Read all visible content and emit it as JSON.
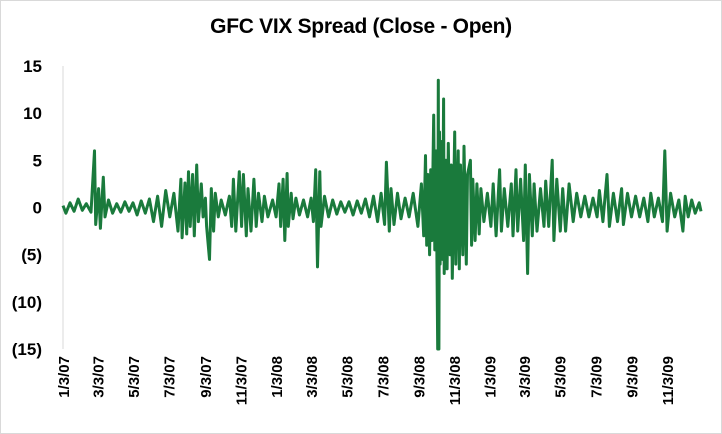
{
  "chart_data": {
    "type": "line",
    "title": "GFC VIX Spread (Close - Open)",
    "xlabel": "",
    "ylabel": "",
    "ylim": [
      -15,
      15
    ],
    "yticks": [
      15,
      10,
      5,
      0,
      -5,
      -10,
      -15
    ],
    "ytick_labels": [
      "15",
      "10",
      "5",
      "0",
      "(5)",
      "(10)",
      "(15)"
    ],
    "x_range": [
      "1/3/07",
      "12/31/09"
    ],
    "xtick_labels": [
      "1/3/07",
      "3/3/07",
      "5/3/07",
      "7/3/07",
      "9/3/07",
      "11/3/07",
      "1/3/08",
      "3/3/08",
      "5/3/08",
      "7/3/08",
      "9/3/08",
      "11/3/08",
      "1/3/09",
      "3/3/09",
      "5/3/09",
      "7/3/09",
      "9/3/09",
      "11/3/09"
    ],
    "grid": false,
    "legend": "none",
    "series": [
      {
        "color": "#1a7a3c",
        "points": [
          [
            "1/3/07",
            0.2
          ],
          [
            "1/8/07",
            -0.6
          ],
          [
            "1/15/07",
            0.5
          ],
          [
            "1/22/07",
            -0.4
          ],
          [
            "1/29/07",
            0.9
          ],
          [
            "2/5/07",
            -0.3
          ],
          [
            "2/12/07",
            0.4
          ],
          [
            "2/20/07",
            -0.5
          ],
          [
            "2/26/07",
            6.0
          ],
          [
            "2/28/07",
            -1.8
          ],
          [
            "3/5/07",
            2.0
          ],
          [
            "3/8/07",
            -2.2
          ],
          [
            "3/13/07",
            3.2
          ],
          [
            "3/16/07",
            -1.0
          ],
          [
            "3/22/07",
            0.8
          ],
          [
            "3/29/07",
            -0.6
          ],
          [
            "4/5/07",
            0.4
          ],
          [
            "4/12/07",
            -0.5
          ],
          [
            "4/19/07",
            0.6
          ],
          [
            "4/26/07",
            -0.4
          ],
          [
            "5/3/07",
            0.5
          ],
          [
            "5/10/07",
            -0.8
          ],
          [
            "5/17/07",
            0.7
          ],
          [
            "5/24/07",
            -0.6
          ],
          [
            "5/31/07",
            0.9
          ],
          [
            "6/7/07",
            -1.5
          ],
          [
            "6/14/07",
            1.2
          ],
          [
            "6/21/07",
            -2.0
          ],
          [
            "6/28/07",
            1.8
          ],
          [
            "7/5/07",
            -1.0
          ],
          [
            "7/12/07",
            1.5
          ],
          [
            "7/19/07",
            -2.5
          ],
          [
            "7/24/07",
            3.0
          ],
          [
            "7/26/07",
            -3.2
          ],
          [
            "7/31/07",
            2.6
          ],
          [
            "8/3/07",
            -2.8
          ],
          [
            "8/6/07",
            3.8
          ],
          [
            "8/9/07",
            -2.0
          ],
          [
            "8/13/07",
            3.5
          ],
          [
            "8/16/07",
            -3.0
          ],
          [
            "8/20/07",
            4.5
          ],
          [
            "8/23/07",
            -1.5
          ],
          [
            "8/28/07",
            2.5
          ],
          [
            "8/31/07",
            -1.0
          ],
          [
            "9/4/07",
            1.0
          ],
          [
            "9/6/07",
            -2.0
          ],
          [
            "9/11/07",
            -5.5
          ],
          [
            "9/14/07",
            2.0
          ],
          [
            "9/18/07",
            -2.5
          ],
          [
            "9/21/07",
            1.5
          ],
          [
            "9/26/07",
            -1.0
          ],
          [
            "10/1/07",
            0.8
          ],
          [
            "10/8/07",
            -0.8
          ],
          [
            "10/15/07",
            1.2
          ],
          [
            "10/19/07",
            -2.0
          ],
          [
            "10/22/07",
            3.0
          ],
          [
            "10/26/07",
            -2.5
          ],
          [
            "11/1/07",
            3.8
          ],
          [
            "11/5/07",
            -2.0
          ],
          [
            "11/8/07",
            3.5
          ],
          [
            "11/13/07",
            -3.0
          ],
          [
            "11/16/07",
            2.0
          ],
          [
            "11/21/07",
            -2.5
          ],
          [
            "11/26/07",
            3.0
          ],
          [
            "11/30/07",
            -2.0
          ],
          [
            "12/4/07",
            1.5
          ],
          [
            "12/10/07",
            -1.5
          ],
          [
            "12/14/07",
            1.2
          ],
          [
            "12/20/07",
            -1.0
          ],
          [
            "12/28/07",
            0.8
          ],
          [
            "1/3/08",
            -1.0
          ],
          [
            "1/8/08",
            2.5
          ],
          [
            "1/11/08",
            -2.0
          ],
          [
            "1/15/08",
            3.0
          ],
          [
            "1/18/08",
            -3.5
          ],
          [
            "1/22/08",
            3.6
          ],
          [
            "1/24/08",
            -2.0
          ],
          [
            "1/29/08",
            1.5
          ],
          [
            "2/1/08",
            -1.2
          ],
          [
            "2/6/08",
            1.0
          ],
          [
            "2/12/08",
            -0.8
          ],
          [
            "2/19/08",
            0.8
          ],
          [
            "2/26/08",
            -1.0
          ],
          [
            "3/3/08",
            1.0
          ],
          [
            "3/7/08",
            -1.5
          ],
          [
            "3/11/08",
            4.0
          ],
          [
            "3/14/08",
            -6.3
          ],
          [
            "3/18/08",
            3.8
          ],
          [
            "3/20/08",
            -2.0
          ],
          [
            "3/26/08",
            1.2
          ],
          [
            "4/2/08",
            -1.0
          ],
          [
            "4/9/08",
            0.8
          ],
          [
            "4/16/08",
            -0.7
          ],
          [
            "4/23/08",
            0.6
          ],
          [
            "4/30/08",
            -0.5
          ],
          [
            "5/7/08",
            0.6
          ],
          [
            "5/14/08",
            -0.8
          ],
          [
            "5/21/08",
            0.7
          ],
          [
            "5/28/08",
            -0.6
          ],
          [
            "6/4/08",
            0.9
          ],
          [
            "6/11/08",
            -1.0
          ],
          [
            "6/18/08",
            1.2
          ],
          [
            "6/25/08",
            -1.5
          ],
          [
            "7/1/08",
            1.5
          ],
          [
            "7/7/08",
            -1.8
          ],
          [
            "7/10/08",
            4.8
          ],
          [
            "7/15/08",
            -2.5
          ],
          [
            "7/18/08",
            2.0
          ],
          [
            "7/23/08",
            -1.8
          ],
          [
            "7/29/08",
            1.5
          ],
          [
            "8/4/08",
            -1.2
          ],
          [
            "8/11/08",
            1.0
          ],
          [
            "8/18/08",
            -1.0
          ],
          [
            "8/25/08",
            1.5
          ],
          [
            "9/2/08",
            -2.0
          ],
          [
            "9/8/08",
            2.5
          ],
          [
            "9/12/08",
            -3.0
          ],
          [
            "9/15/08",
            5.5
          ],
          [
            "9/17/08",
            -4.0
          ],
          [
            "9/19/08",
            3.5
          ],
          [
            "9/22/08",
            -5.0
          ],
          [
            "9/24/08",
            4.0
          ],
          [
            "9/26/08",
            -3.5
          ],
          [
            "9/29/08",
            9.8
          ],
          [
            "10/1/08",
            -4.5
          ],
          [
            "10/3/08",
            6.0
          ],
          [
            "10/6/08",
            -16.0
          ],
          [
            "10/7/08",
            13.5
          ],
          [
            "10/8/08",
            -15.0
          ],
          [
            "10/9/08",
            8.0
          ],
          [
            "10/10/08",
            -6.0
          ],
          [
            "10/13/08",
            7.0
          ],
          [
            "10/14/08",
            -5.5
          ],
          [
            "10/16/08",
            11.5
          ],
          [
            "10/17/08",
            -7.0
          ],
          [
            "10/20/08",
            5.0
          ],
          [
            "10/22/08",
            -6.5
          ],
          [
            "10/24/08",
            6.8
          ],
          [
            "10/27/08",
            -5.0
          ],
          [
            "10/29/08",
            4.5
          ],
          [
            "10/31/08",
            -7.5
          ],
          [
            "11/4/08",
            8.0
          ],
          [
            "11/6/08",
            -6.0
          ],
          [
            "11/10/08",
            6.0
          ],
          [
            "11/12/08",
            -6.5
          ],
          [
            "11/14/08",
            4.5
          ],
          [
            "11/18/08",
            -5.0
          ],
          [
            "11/20/08",
            6.5
          ],
          [
            "11/24/08",
            -6.0
          ],
          [
            "11/26/08",
            3.5
          ],
          [
            "12/1/08",
            5.0
          ],
          [
            "12/3/08",
            -4.0
          ],
          [
            "12/5/08",
            3.0
          ],
          [
            "12/9/08",
            -3.5
          ],
          [
            "12/12/08",
            2.5
          ],
          [
            "12/16/08",
            -2.8
          ],
          [
            "12/19/08",
            2.0
          ],
          [
            "12/24/08",
            -1.5
          ],
          [
            "12/30/08",
            1.5
          ],
          [
            "1/5/09",
            -2.0
          ],
          [
            "1/9/09",
            2.5
          ],
          [
            "1/14/09",
            -3.0
          ],
          [
            "1/20/09",
            4.0
          ],
          [
            "1/23/09",
            -2.5
          ],
          [
            "1/28/09",
            2.0
          ],
          [
            "2/3/09",
            -2.0
          ],
          [
            "2/9/09",
            2.5
          ],
          [
            "2/12/09",
            -3.0
          ],
          [
            "2/17/09",
            4.0
          ],
          [
            "2/20/09",
            -2.5
          ],
          [
            "2/25/09",
            3.0
          ],
          [
            "3/2/09",
            -3.5
          ],
          [
            "3/5/09",
            4.5
          ],
          [
            "3/9/09",
            -7.0
          ],
          [
            "3/12/09",
            3.5
          ],
          [
            "3/17/09",
            -3.0
          ],
          [
            "3/20/09",
            2.5
          ],
          [
            "3/25/09",
            -2.5
          ],
          [
            "3/31/09",
            2.0
          ],
          [
            "4/6/09",
            -2.0
          ],
          [
            "4/9/09",
            2.8
          ],
          [
            "4/14/09",
            -2.0
          ],
          [
            "4/20/09",
            5.0
          ],
          [
            "4/23/09",
            -3.5
          ],
          [
            "4/28/09",
            3.0
          ],
          [
            "5/4/09",
            -2.5
          ],
          [
            "5/8/09",
            2.0
          ],
          [
            "5/13/09",
            -2.5
          ],
          [
            "5/19/09",
            2.5
          ],
          [
            "5/26/09",
            -1.5
          ],
          [
            "6/1/09",
            1.5
          ],
          [
            "6/8/09",
            -1.0
          ],
          [
            "6/15/09",
            1.2
          ],
          [
            "6/22/09",
            -1.0
          ],
          [
            "6/29/09",
            1.0
          ],
          [
            "7/6/09",
            -1.0
          ],
          [
            "7/10/09",
            1.8
          ],
          [
            "7/16/09",
            -1.5
          ],
          [
            "7/23/09",
            3.5
          ],
          [
            "7/27/09",
            -2.0
          ],
          [
            "8/3/09",
            1.5
          ],
          [
            "8/10/09",
            -1.5
          ],
          [
            "8/17/09",
            2.0
          ],
          [
            "8/20/09",
            -1.8
          ],
          [
            "8/27/09",
            1.5
          ],
          [
            "9/3/09",
            -1.0
          ],
          [
            "9/10/09",
            1.2
          ],
          [
            "9/17/09",
            -1.0
          ],
          [
            "9/24/09",
            1.0
          ],
          [
            "10/1/09",
            -1.5
          ],
          [
            "10/6/09",
            1.5
          ],
          [
            "10/12/09",
            -1.0
          ],
          [
            "10/19/09",
            1.0
          ],
          [
            "10/26/09",
            -1.5
          ],
          [
            "10/30/09",
            6.0
          ],
          [
            "11/3/09",
            -2.5
          ],
          [
            "11/9/09",
            1.5
          ],
          [
            "11/16/09",
            -1.0
          ],
          [
            "11/23/09",
            0.8
          ],
          [
            "11/30/09",
            -2.5
          ],
          [
            "12/4/09",
            1.2
          ],
          [
            "12/9/09",
            -1.0
          ],
          [
            "12/15/09",
            0.8
          ],
          [
            "12/21/09",
            -0.6
          ],
          [
            "12/28/09",
            0.5
          ],
          [
            "12/31/09",
            -0.4
          ]
        ]
      }
    ]
  }
}
